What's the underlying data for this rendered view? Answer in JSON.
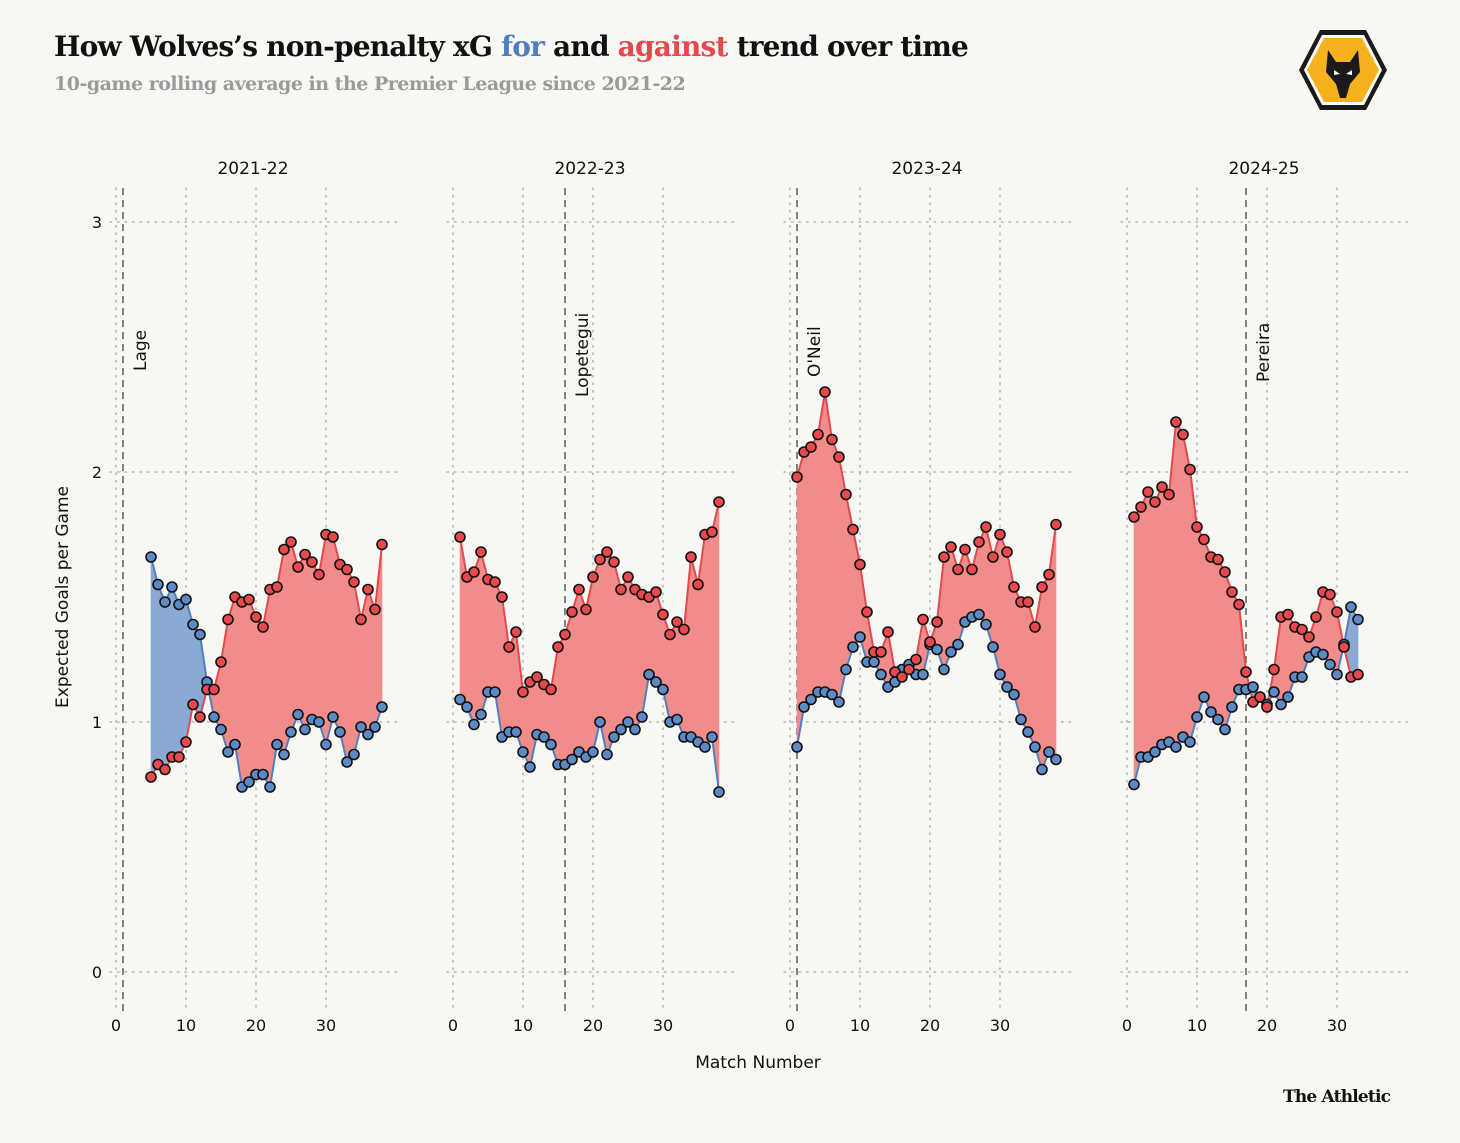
{
  "header": {
    "title_part1": "How Wolves’s non-penalty xG ",
    "title_for": "for",
    "title_part2": " and ",
    "title_against": "against",
    "title_part3": " trend over time",
    "subtitle": "10-game rolling average in the Premier League since 2021-22",
    "logo": "wolves-crest-icon"
  },
  "footer": {
    "credit": "The Athletic"
  },
  "colors": {
    "background": "#f7f7f3",
    "for_line": "#4f7fbf",
    "for_point": "#5b8ac6",
    "for_fill": "#8aa9d3",
    "against_line": "#e5484d",
    "against_point": "#e8494d",
    "against_fill": "#f28c8a",
    "grid": "#b5b5b5",
    "dash": "#666666"
  },
  "chart_data": {
    "type": "line",
    "title": "How Wolves’s non-penalty xG for and against trend over time",
    "subtitle": "10-game rolling average in the Premier League since 2021-22",
    "xlabel": "Match Number",
    "ylabel": "Expected Goals per Game",
    "ylim": [
      0,
      3
    ],
    "yticks": [
      0,
      1,
      2,
      3
    ],
    "xticks": [
      0,
      10,
      20,
      30
    ],
    "grid": true,
    "legend": "in-title (blue = for, red = against)",
    "series_names": [
      "xG for",
      "xG against"
    ],
    "panels": [
      {
        "season": "2021-22",
        "coach_change": {
          "name": "Lage",
          "match": 1
        },
        "start_match": 5,
        "xg_for": [
          1.66,
          1.55,
          1.48,
          1.54,
          1.47,
          1.49,
          1.39,
          1.35,
          1.16,
          1.02,
          0.97,
          0.88,
          0.91,
          0.74,
          0.76,
          0.79,
          0.79,
          0.74,
          0.91,
          0.87,
          0.96,
          1.03,
          0.97,
          1.01,
          1.0,
          0.91,
          1.02,
          0.96,
          0.84,
          0.87,
          0.98,
          0.95,
          0.98,
          1.06
        ],
        "xg_against": [
          0.78,
          0.83,
          0.81,
          0.86,
          0.86,
          0.92,
          1.07,
          1.02,
          1.13,
          1.13,
          1.24,
          1.41,
          1.5,
          1.48,
          1.49,
          1.42,
          1.38,
          1.53,
          1.54,
          1.69,
          1.72,
          1.62,
          1.67,
          1.64,
          1.59,
          1.75,
          1.74,
          1.63,
          1.61,
          1.56,
          1.41,
          1.53,
          1.45,
          1.71
        ]
      },
      {
        "season": "2022-23",
        "coach_change": {
          "name": "Lopetegui",
          "match": 16
        },
        "start_match": 1,
        "xg_for": [
          1.09,
          1.06,
          0.99,
          1.03,
          1.12,
          1.12,
          0.94,
          0.96,
          0.96,
          0.88,
          0.82,
          0.95,
          0.94,
          0.91,
          0.83,
          0.83,
          0.85,
          0.88,
          0.86,
          0.88,
          1.0,
          0.87,
          0.94,
          0.97,
          1.0,
          0.97,
          1.02,
          1.19,
          1.16,
          1.13,
          1.0,
          1.01,
          0.94,
          0.94,
          0.92,
          0.9,
          0.94,
          0.72
        ],
        "xg_against": [
          1.74,
          1.58,
          1.6,
          1.68,
          1.57,
          1.56,
          1.5,
          1.3,
          1.36,
          1.12,
          1.16,
          1.18,
          1.15,
          1.13,
          1.3,
          1.35,
          1.44,
          1.53,
          1.45,
          1.58,
          1.65,
          1.68,
          1.64,
          1.53,
          1.58,
          1.53,
          1.51,
          1.5,
          1.52,
          1.43,
          1.35,
          1.4,
          1.37,
          1.66,
          1.55,
          1.75,
          1.76,
          1.88
        ]
      },
      {
        "season": "2023-24",
        "coach_change": {
          "name": "O'Neil",
          "match": 1
        },
        "start_match": 1,
        "xg_for": [
          0.9,
          1.06,
          1.09,
          1.12,
          1.12,
          1.11,
          1.08,
          1.21,
          1.3,
          1.34,
          1.24,
          1.24,
          1.19,
          1.14,
          1.16,
          1.21,
          1.23,
          1.19,
          1.19,
          1.31,
          1.29,
          1.21,
          1.28,
          1.31,
          1.4,
          1.42,
          1.43,
          1.39,
          1.3,
          1.19,
          1.14,
          1.11,
          1.01,
          0.96,
          0.9,
          0.81,
          0.88,
          0.85
        ],
        "xg_against": [
          1.98,
          2.08,
          2.1,
          2.15,
          2.32,
          2.13,
          2.06,
          1.91,
          1.77,
          1.63,
          1.44,
          1.28,
          1.28,
          1.36,
          1.2,
          1.18,
          1.21,
          1.25,
          1.41,
          1.32,
          1.4,
          1.66,
          1.7,
          1.61,
          1.69,
          1.61,
          1.72,
          1.78,
          1.66,
          1.75,
          1.68,
          1.54,
          1.48,
          1.48,
          1.38,
          1.54,
          1.59,
          1.79
        ]
      },
      {
        "season": "2024-25",
        "coach_change": {
          "name": "Pereira",
          "match": 17
        },
        "start_match": 1,
        "xg_for": [
          0.75,
          0.86,
          0.86,
          0.88,
          0.91,
          0.92,
          0.9,
          0.94,
          0.92,
          1.02,
          1.1,
          1.04,
          1.01,
          0.97,
          1.06,
          1.13,
          1.13,
          1.14,
          1.1,
          1.07,
          1.12,
          1.07,
          1.1,
          1.18,
          1.18,
          1.26,
          1.28,
          1.27,
          1.23,
          1.19,
          1.31,
          1.46,
          1.41
        ],
        "xg_against": [
          1.82,
          1.86,
          1.92,
          1.88,
          1.94,
          1.91,
          2.2,
          2.15,
          2.01,
          1.78,
          1.73,
          1.66,
          1.65,
          1.6,
          1.52,
          1.47,
          1.2,
          1.08,
          1.1,
          1.06,
          1.21,
          1.42,
          1.43,
          1.38,
          1.37,
          1.34,
          1.42,
          1.52,
          1.51,
          1.44,
          1.3,
          1.18,
          1.19
        ]
      }
    ]
  }
}
